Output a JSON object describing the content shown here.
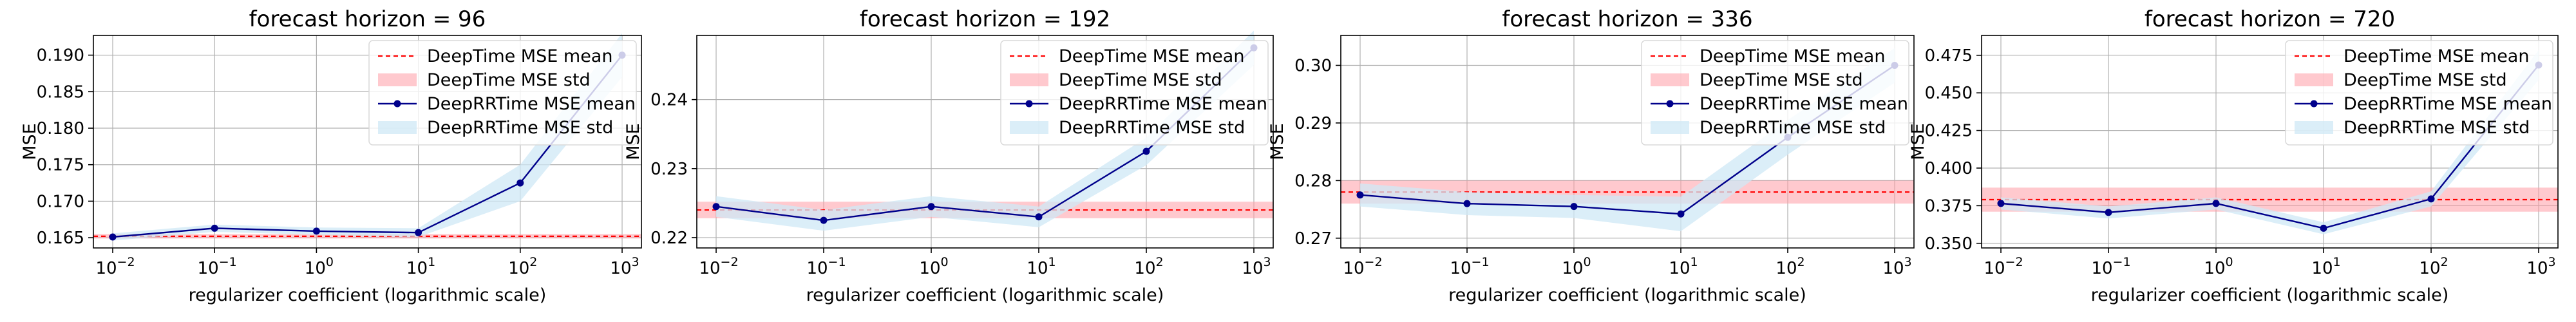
{
  "figure": {
    "legend_placement": "upper-right",
    "grid": true
  },
  "colors": {
    "baseline_line": "#ff0000",
    "baseline_band": "#ff9da5",
    "rr_line": "#00008b",
    "rr_band": "#cfe8f6"
  },
  "chart_data": [
    {
      "type": "line",
      "title": "forecast horizon = 96",
      "xlabel": "regularizer coefficient (logarithmic scale)",
      "ylabel": "MSE",
      "xscale": "log",
      "x": [
        0.01,
        0.1,
        1,
        10,
        100,
        1000
      ],
      "xticks": [
        0.01,
        0.1,
        1,
        10,
        100,
        1000
      ],
      "xtick_labels": [
        "10",
        "10",
        "10",
        "10",
        "10",
        "10"
      ],
      "xtick_exponents": [
        "−2",
        "−1",
        "0",
        "1",
        "2",
        "3"
      ],
      "yticks": [
        0.165,
        0.17,
        0.175,
        0.18,
        0.185,
        0.19
      ],
      "ytick_labels": [
        "0.165",
        "0.170",
        "0.175",
        "0.180",
        "0.185",
        "0.190"
      ],
      "ylim": [
        0.1636,
        0.1927
      ],
      "baseline": {
        "name": "DeepTime MSE mean",
        "mean": 0.1652,
        "std": 0.0003,
        "std_name": "DeepTime MSE std"
      },
      "series": [
        {
          "name": "DeepRRTime MSE mean",
          "values": [
            0.1651,
            0.1663,
            0.1659,
            0.1657,
            0.1725,
            0.19
          ],
          "std": [
            0.0005,
            0.0005,
            0.0005,
            0.0006,
            0.0025,
            0.003
          ],
          "std_name": "DeepRRTime MSE std"
        }
      ],
      "legend": [
        "DeepTime MSE mean",
        "DeepTime MSE std",
        "DeepRRTime MSE mean",
        "DeepRRTime MSE std"
      ]
    },
    {
      "type": "line",
      "title": "forecast horizon = 192",
      "xlabel": "regularizer coefficient (logarithmic scale)",
      "ylabel": "MSE",
      "xscale": "log",
      "x": [
        0.01,
        0.1,
        1,
        10,
        100,
        1000
      ],
      "xticks": [
        0.01,
        0.1,
        1,
        10,
        100,
        1000
      ],
      "xtick_labels": [
        "10",
        "10",
        "10",
        "10",
        "10",
        "10"
      ],
      "xtick_exponents": [
        "−2",
        "−1",
        "0",
        "1",
        "2",
        "3"
      ],
      "yticks": [
        0.22,
        0.23,
        0.24
      ],
      "ytick_labels": [
        "0.22",
        "0.23",
        "0.24"
      ],
      "ylim": [
        0.2185,
        0.2493
      ],
      "baseline": {
        "name": "DeepTime MSE mean",
        "mean": 0.224,
        "std": 0.0012,
        "std_name": "DeepTime MSE std"
      },
      "series": [
        {
          "name": "DeepRRTime MSE mean",
          "values": [
            0.2245,
            0.2225,
            0.2245,
            0.223,
            0.2325,
            0.2475
          ],
          "std": [
            0.0015,
            0.0015,
            0.0015,
            0.0015,
            0.002,
            0.0025
          ],
          "std_name": "DeepRRTime MSE std"
        }
      ],
      "legend": [
        "DeepTime MSE mean",
        "DeepTime MSE std",
        "DeepRRTime MSE mean",
        "DeepRRTime MSE std"
      ]
    },
    {
      "type": "line",
      "title": "forecast horizon = 336",
      "xlabel": "regularizer coefficient (logarithmic scale)",
      "ylabel": "MSE",
      "xscale": "log",
      "x": [
        0.01,
        0.1,
        1,
        10,
        100,
        1000
      ],
      "xticks": [
        0.01,
        0.1,
        1,
        10,
        100,
        1000
      ],
      "xtick_labels": [
        "10",
        "10",
        "10",
        "10",
        "10",
        "10"
      ],
      "xtick_exponents": [
        "−2",
        "−1",
        "0",
        "1",
        "2",
        "3"
      ],
      "yticks": [
        0.27,
        0.28,
        0.29,
        0.3
      ],
      "ytick_labels": [
        "0.27",
        "0.28",
        "0.29",
        "0.30"
      ],
      "ylim": [
        0.2683,
        0.3052
      ],
      "baseline": {
        "name": "DeepTime MSE mean",
        "mean": 0.278,
        "std": 0.002,
        "std_name": "DeepTime MSE std"
      },
      "series": [
        {
          "name": "DeepRRTime MSE mean",
          "values": [
            0.2775,
            0.276,
            0.2755,
            0.2742,
            0.2875,
            0.3
          ],
          "std": [
            0.002,
            0.002,
            0.002,
            0.003,
            0.003,
            0.003
          ],
          "std_name": "DeepRRTime MSE std"
        }
      ],
      "legend": [
        "DeepTime MSE mean",
        "DeepTime MSE std",
        "DeepRRTime MSE mean",
        "DeepRRTime MSE std"
      ]
    },
    {
      "type": "line",
      "title": "forecast horizon = 720",
      "xlabel": "regularizer coefficient (logarithmic scale)",
      "ylabel": "MSE",
      "xscale": "log",
      "x": [
        0.01,
        0.1,
        1,
        10,
        100,
        1000
      ],
      "xticks": [
        0.01,
        0.1,
        1,
        10,
        100,
        1000
      ],
      "xtick_labels": [
        "10",
        "10",
        "10",
        "10",
        "10",
        "10"
      ],
      "xtick_exponents": [
        "−2",
        "−1",
        "0",
        "1",
        "2",
        "3"
      ],
      "yticks": [
        0.35,
        0.375,
        0.4,
        0.425,
        0.45,
        0.475
      ],
      "ytick_labels": [
        "0.350",
        "0.375",
        "0.400",
        "0.425",
        "0.450",
        "0.475"
      ],
      "ylim": [
        0.3469,
        0.4882
      ],
      "baseline": {
        "name": "DeepTime MSE mean",
        "mean": 0.379,
        "std": 0.008,
        "std_name": "DeepTime MSE std"
      },
      "series": [
        {
          "name": "DeepRRTime MSE mean",
          "values": [
            0.3765,
            0.3705,
            0.3765,
            0.36,
            0.3795,
            0.4685
          ],
          "std": [
            0.004,
            0.004,
            0.004,
            0.004,
            0.005,
            0.01
          ],
          "std_name": "DeepRRTime MSE std"
        }
      ],
      "legend": [
        "DeepTime MSE mean",
        "DeepTime MSE std",
        "DeepRRTime MSE mean",
        "DeepRRTime MSE std"
      ]
    }
  ]
}
